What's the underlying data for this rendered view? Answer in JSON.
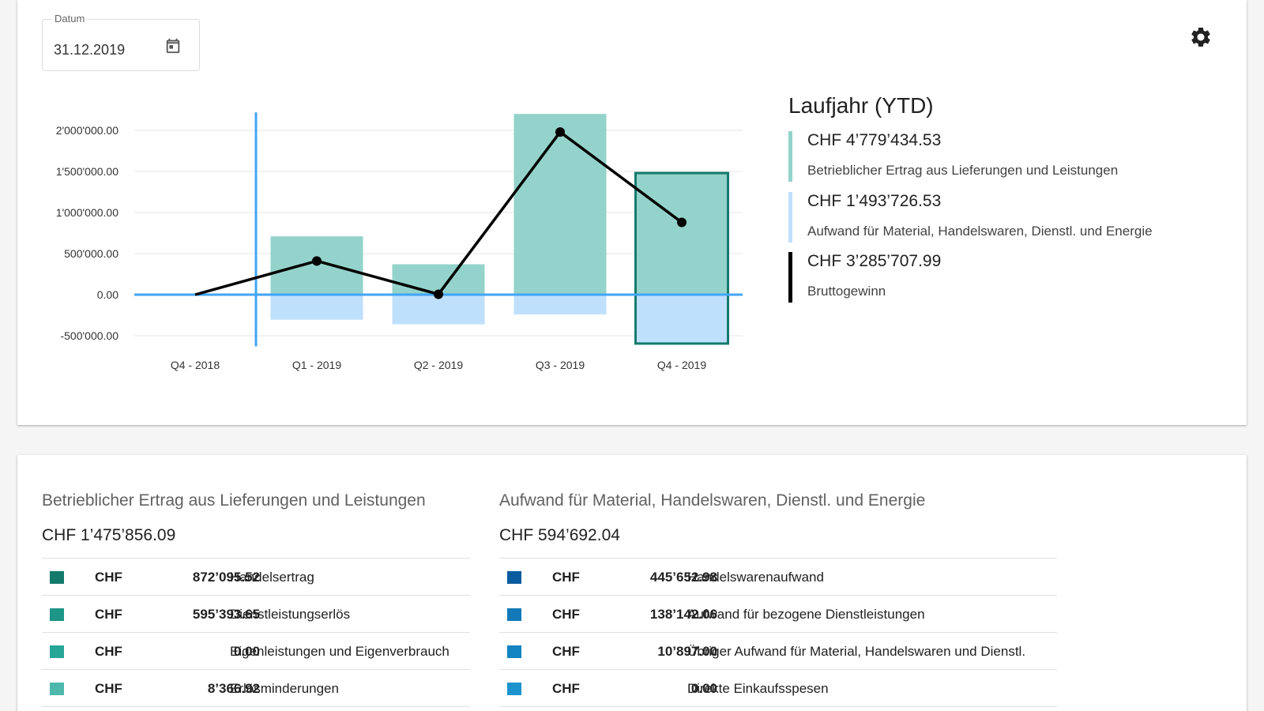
{
  "date_picker": {
    "label": "Datum",
    "value": "31.12.2019"
  },
  "chart_data": {
    "type": "bar",
    "categories": [
      "Q4 - 2018",
      "Q1 - 2019",
      "Q2 - 2019",
      "Q3 - 2019",
      "Q4 - 2019"
    ],
    "y_tick_labels": [
      "2'000'000.00",
      "1'500'000.00",
      "1'000'000.00",
      "500'000.00",
      "0.00",
      "-500'000.00"
    ],
    "y_ticks": [
      2000000,
      1500000,
      1000000,
      500000,
      0,
      -500000
    ],
    "ylim": [
      -600000,
      2200000
    ],
    "series": [
      {
        "kind": "bar",
        "values": [
          0,
          710000,
          370000,
          2200000,
          1480000
        ],
        "color": "#94d3cb"
      },
      {
        "kind": "bar",
        "values": [
          0,
          -305000,
          -360000,
          -240000,
          -595000
        ],
        "color": "#bfe0fd"
      },
      {
        "kind": "line",
        "values": [
          0,
          410000,
          5000,
          1980000,
          880000
        ],
        "color": "#000000"
      }
    ],
    "selected_category": "Q4 - 2019",
    "highlight_category": "Q1 - 2019"
  },
  "ytd": {
    "title": "Laufjahr (YTD)",
    "items": [
      {
        "amount": "CHF 4’779’434.53",
        "label": "Betrieblicher Ertrag aus Lieferungen und Leistungen",
        "color": "#94d3cb"
      },
      {
        "amount": "CHF 1’493’726.53",
        "label": "Aufwand für Material, Handelswaren, Dienstl. und Energie",
        "color": "#bfe0fd"
      },
      {
        "amount": "CHF 3’285’707.99",
        "label": "Bruttogewinn",
        "color": "#000000"
      }
    ]
  },
  "revenue": {
    "title": "Betrieblicher Ertrag aus Lieferungen und Leistungen",
    "total": "CHF 1’475’856.09",
    "rows": [
      {
        "currency": "CHF",
        "amount": "872’095.52",
        "label": "Handelsertrag",
        "color": "#137a6c"
      },
      {
        "currency": "CHF",
        "amount": "595’393.65",
        "label": "Dienstleistungserlös",
        "color": "#1d9587"
      },
      {
        "currency": "CHF",
        "amount": "0.00",
        "label": "Eigenleistungen und Eigenverbrauch",
        "color": "#26a697"
      },
      {
        "currency": "CHF",
        "amount": "8’366.92",
        "label": "Erlösminderungen",
        "color": "#4db8ab"
      }
    ]
  },
  "expenses": {
    "title": "Aufwand für Material, Handelswaren, Dienstl. und Energie",
    "total": "CHF 594’692.04",
    "rows": [
      {
        "currency": "CHF",
        "amount": "445’652.98",
        "label": "Handelswarenaufwand",
        "color": "#0b5c9e"
      },
      {
        "currency": "CHF",
        "amount": "138’142.06",
        "label": "Aufwand für bezogene Dienstleistungen",
        "color": "#1279b8"
      },
      {
        "currency": "CHF",
        "amount": "10’897.00",
        "label": "Übriger Aufwand für Material, Handelswaren und Dienstl.",
        "color": "#1384c2"
      },
      {
        "currency": "CHF",
        "amount": "0.00",
        "label": "Direkte Einkaufsspesen",
        "color": "#1a93cf"
      }
    ]
  },
  "icons": {
    "calendar": "calendar-icon",
    "settings": "gear-icon"
  }
}
